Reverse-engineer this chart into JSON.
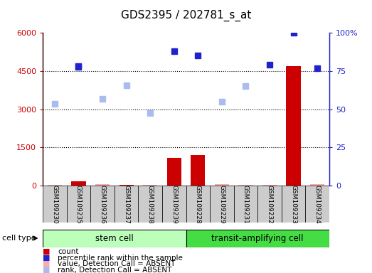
{
  "title": "GDS2395 / 202781_s_at",
  "samples": [
    "GSM109230",
    "GSM109235",
    "GSM109236",
    "GSM109237",
    "GSM109238",
    "GSM109239",
    "GSM109228",
    "GSM109229",
    "GSM109231",
    "GSM109232",
    "GSM109233",
    "GSM109234"
  ],
  "count_values": [
    30,
    180,
    50,
    30,
    20,
    1100,
    1200,
    60,
    20,
    20,
    4700,
    50
  ],
  "count_absent": [
    true,
    false,
    true,
    false,
    true,
    false,
    false,
    true,
    true,
    true,
    false,
    true
  ],
  "rank_values": [
    3200,
    4650,
    3400,
    3950,
    2850,
    null,
    null,
    3300,
    3900,
    null,
    null,
    4600
  ],
  "rank_absent": [
    true,
    false,
    true,
    true,
    true,
    null,
    null,
    true,
    true,
    null,
    null,
    false
  ],
  "percentile_values": [
    null,
    78,
    null,
    null,
    null,
    88,
    85,
    null,
    null,
    79,
    100,
    null
  ],
  "percentile_absent": [
    null,
    false,
    null,
    null,
    null,
    false,
    false,
    null,
    null,
    false,
    false,
    null
  ],
  "ylim_left": [
    0,
    6000
  ],
  "ylim_right": [
    0,
    100
  ],
  "yticks_left": [
    0,
    1500,
    3000,
    4500,
    6000
  ],
  "ytick_labels_left": [
    "0",
    "1500",
    "3000",
    "4500",
    "6000"
  ],
  "yticks_right": [
    0,
    25,
    50,
    75,
    100
  ],
  "ytick_labels_right": [
    "0",
    "25",
    "50",
    "75",
    "100%"
  ],
  "color_count": "#cc0000",
  "color_count_absent": "#ffaaaa",
  "color_rank_absent": "#aabbee",
  "color_percentile": "#2222cc",
  "color_stem": "#bbffbb",
  "color_transit": "#44dd44",
  "color_bar_bg": "#cccccc",
  "stem_label": "stem cell",
  "transit_label": "transit-amplifying cell",
  "cell_type_label": "cell type",
  "legend_items": [
    "count",
    "percentile rank within the sample",
    "value, Detection Call = ABSENT",
    "rank, Detection Call = ABSENT"
  ],
  "legend_colors": [
    "#cc0000",
    "#2222cc",
    "#ffaaaa",
    "#aabbee"
  ]
}
